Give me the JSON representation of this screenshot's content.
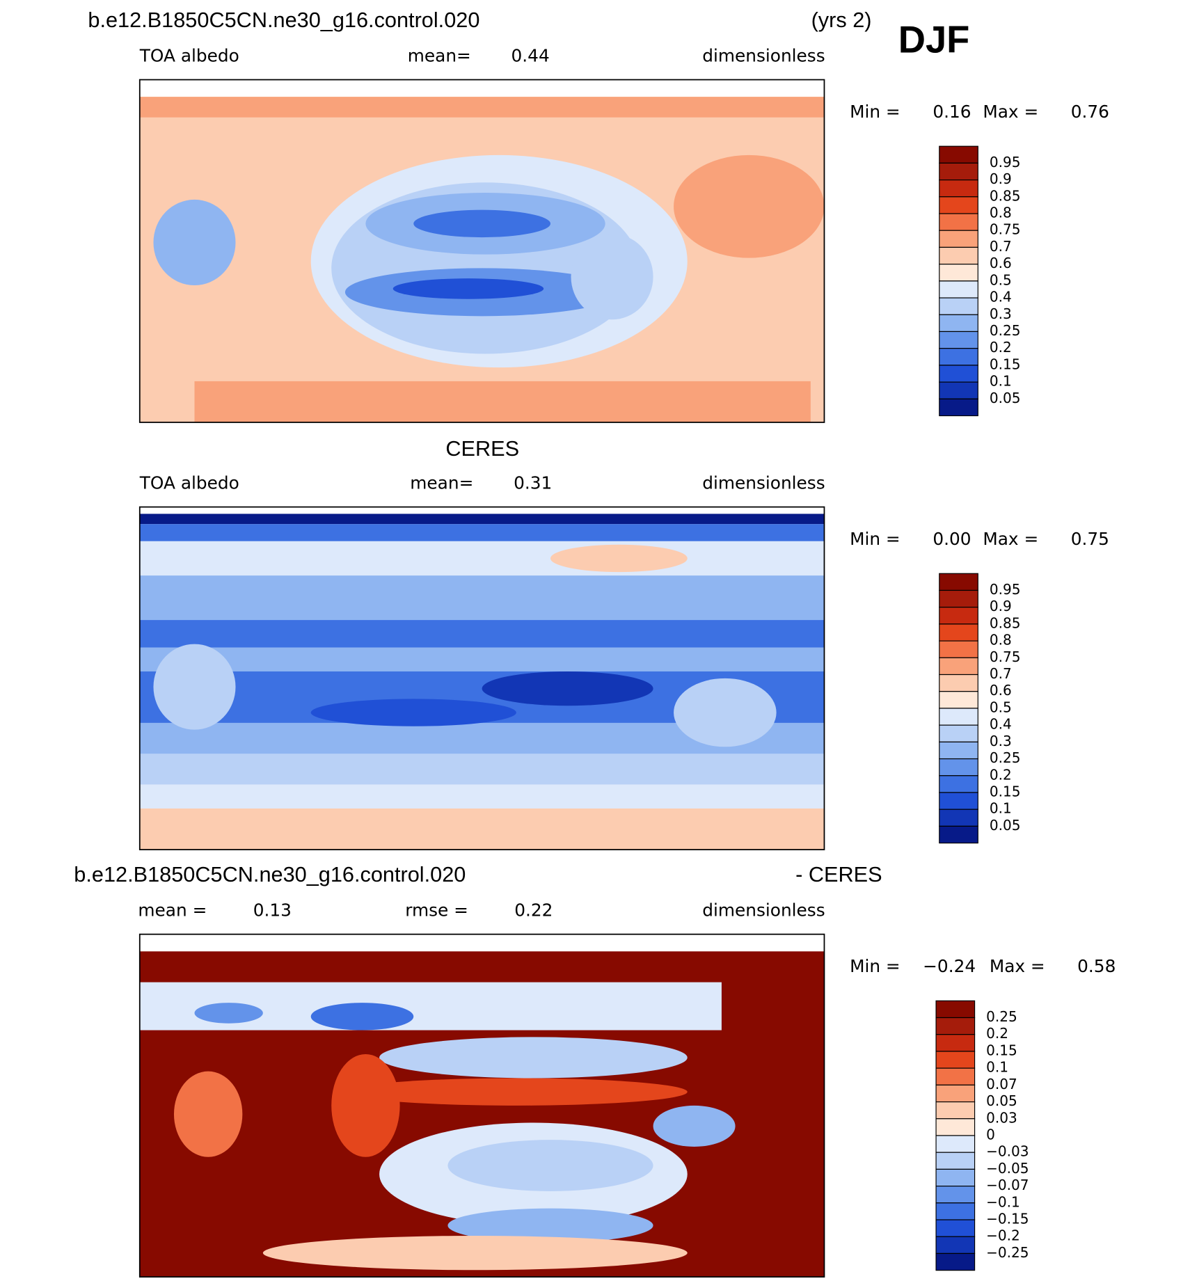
{
  "title": "DJF",
  "panels": [
    {
      "header": {
        "left": "b.e12.B1850C5CN.ne30_g16.control.020",
        "right": "(yrs 2)"
      },
      "subtitle": {
        "left": "TOA albedo",
        "mean_label": "mean=",
        "mean": "0.44",
        "units": "dimensionless"
      },
      "stats": {
        "min_label": "Min =",
        "min": "0.16",
        "max_label": "Max =",
        "max": "0.76"
      },
      "colorbar": [
        "0.95",
        "0.9",
        "0.85",
        "0.8",
        "0.75",
        "0.7",
        "0.6",
        "0.5",
        "0.4",
        "0.3",
        "0.25",
        "0.2",
        "0.15",
        "0.1",
        "0.05"
      ]
    },
    {
      "header": {
        "center": "CERES"
      },
      "subtitle": {
        "left": "TOA albedo",
        "mean_label": "mean=",
        "mean": "0.31",
        "units": "dimensionless"
      },
      "stats": {
        "min_label": "Min =",
        "min": "0.00",
        "max_label": "Max =",
        "max": "0.75"
      },
      "colorbar": [
        "0.95",
        "0.9",
        "0.85",
        "0.8",
        "0.75",
        "0.7",
        "0.6",
        "0.5",
        "0.4",
        "0.3",
        "0.25",
        "0.2",
        "0.15",
        "0.1",
        "0.05"
      ]
    },
    {
      "header": {
        "left": "b.e12.B1850C5CN.ne30_g16.control.020",
        "right": "- CERES"
      },
      "subtitle": {
        "mean_label": "mean =",
        "mean": "0.13",
        "rmse_label": "rmse =",
        "rmse": "0.22",
        "units": "dimensionless"
      },
      "stats": {
        "min_label": "Min =",
        "min": "−0.24",
        "max_label": "Max =",
        "max": "0.58"
      },
      "colorbar": [
        "0.25",
        "0.2",
        "0.15",
        "0.1",
        "0.07",
        "0.05",
        "0.03",
        "0",
        "−0.03",
        "−0.05",
        "−0.07",
        "−0.1",
        "−0.15",
        "−0.2",
        "−0.25"
      ]
    }
  ]
}
